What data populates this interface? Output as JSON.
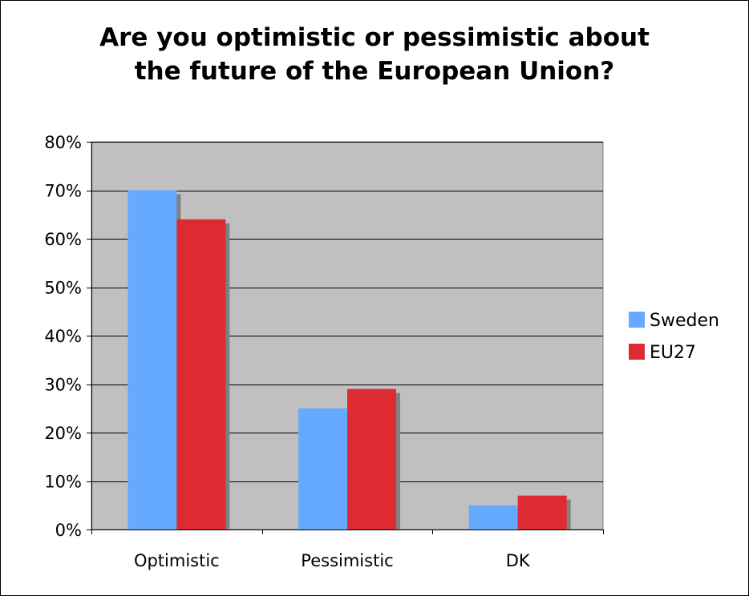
{
  "chart_data": {
    "type": "bar",
    "title_lines": [
      "Are you optimistic or pessimistic about",
      "the future of the European Union?"
    ],
    "categories": [
      "Optimistic",
      "Pessimistic",
      "DK"
    ],
    "series": [
      {
        "name": "Sweden",
        "values": [
          70,
          25,
          5
        ],
        "color": "#66aaff"
      },
      {
        "name": "EU27",
        "values": [
          64,
          29,
          7
        ],
        "color": "#dd2a33"
      }
    ],
    "ylim": [
      0,
      80
    ],
    "y_ticks": [
      0,
      10,
      20,
      30,
      40,
      50,
      60,
      70,
      80
    ],
    "y_tick_suffix": "%",
    "grid": true,
    "plot_background": "#c0c0c0",
    "shadow_color": "#808080",
    "legend_position": "right"
  }
}
